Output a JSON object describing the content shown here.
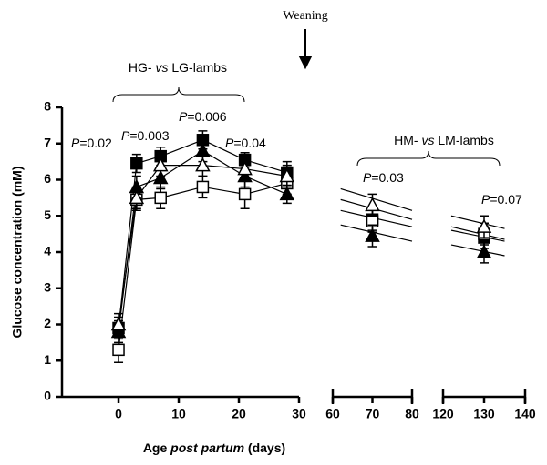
{
  "chart_data": {
    "type": "scatter",
    "y_label": "Glucose concentration (mM)",
    "x_label": [
      {
        "text": "Age "
      },
      {
        "text": "post partum",
        "italic": true
      },
      {
        "text": " (days)"
      }
    ],
    "ylim": [
      0,
      8
    ],
    "yticks": [
      0,
      1,
      2,
      3,
      4,
      5,
      6,
      7,
      8
    ],
    "x_segments": [
      {
        "xlim": [
          -9.4,
          30
        ],
        "xticks": [
          0,
          10,
          20,
          30
        ]
      },
      {
        "xlim": [
          60,
          80
        ],
        "xticks": [
          60,
          70,
          80
        ]
      },
      {
        "xlim": [
          120,
          140
        ],
        "xticks": [
          120,
          130,
          140
        ]
      }
    ],
    "x": [
      0,
      3,
      7,
      14,
      21,
      28,
      70,
      130
    ],
    "series": [
      {
        "marker": "square",
        "filled": true,
        "color": "#000000",
        "values": [
          1.9,
          6.45,
          6.65,
          7.1,
          6.55,
          6.2,
          4.9,
          4.4
        ],
        "errors": [
          0.3,
          0.25,
          0.25,
          0.25,
          0.2,
          0.3,
          0.3,
          0.3
        ],
        "trend": [
          {
            "x": [
              62,
              80
            ],
            "y": [
              5.45,
              4.9
            ]
          },
          {
            "x": [
              122,
              135
            ],
            "y": [
              4.7,
              4.35
            ]
          }
        ]
      },
      {
        "marker": "square",
        "filled": false,
        "color": "#000000",
        "values": [
          1.3,
          5.45,
          5.5,
          5.8,
          5.6,
          5.9,
          4.85,
          4.5
        ],
        "errors": [
          0.35,
          0.3,
          0.3,
          0.3,
          0.4,
          0.3,
          0.3,
          0.3
        ],
        "trend": [
          {
            "x": [
              62,
              80
            ],
            "y": [
              5.15,
              4.7
            ]
          },
          {
            "x": [
              122,
              135
            ],
            "y": [
              4.6,
              4.3
            ]
          }
        ]
      },
      {
        "marker": "triangle",
        "filled": true,
        "color": "#000000",
        "values": [
          1.8,
          5.8,
          6.05,
          6.8,
          6.1,
          5.6,
          4.45,
          4.0
        ],
        "errors": [
          0.3,
          0.3,
          0.3,
          0.3,
          0.3,
          0.25,
          0.3,
          0.3
        ],
        "trend": [
          {
            "x": [
              62,
              80
            ],
            "y": [
              4.75,
              4.3
            ]
          },
          {
            "x": [
              122,
              135
            ],
            "y": [
              4.2,
              3.9
            ]
          }
        ]
      },
      {
        "marker": "triangle",
        "filled": false,
        "color": "#000000",
        "values": [
          2.0,
          5.5,
          6.4,
          6.4,
          6.3,
          6.1,
          5.3,
          4.7
        ],
        "errors": [
          0.3,
          0.3,
          0.3,
          0.3,
          0.3,
          0.3,
          0.3,
          0.3
        ],
        "trend": [
          {
            "x": [
              62,
              80
            ],
            "y": [
              5.75,
              5.15
            ]
          },
          {
            "x": [
              122,
              135
            ],
            "y": [
              5.0,
              4.65
            ]
          }
        ]
      }
    ],
    "annotations": {
      "weaning": "Weaning",
      "groups": [
        [
          {
            "text": "HG- "
          },
          {
            "text": "vs",
            "italic": true
          },
          {
            "text": " LG-lambs"
          }
        ],
        [
          {
            "text": "HM- "
          },
          {
            "text": "vs",
            "italic": true
          },
          {
            "text": " LM-lambs"
          }
        ]
      ],
      "p_values": [
        [
          {
            "text": "P",
            "italic": true
          },
          {
            "text": "=0.02"
          }
        ],
        [
          {
            "text": "P",
            "italic": true
          },
          {
            "text": "=0.003"
          }
        ],
        [
          {
            "text": "P",
            "italic": true
          },
          {
            "text": "=0.006"
          }
        ],
        [
          {
            "text": "P",
            "italic": true
          },
          {
            "text": "=0.04"
          }
        ],
        [
          {
            "text": "P",
            "italic": true
          },
          {
            "text": "=0.03"
          }
        ],
        [
          {
            "text": "P",
            "italic": true
          },
          {
            "text": "=0.07"
          }
        ]
      ]
    }
  }
}
